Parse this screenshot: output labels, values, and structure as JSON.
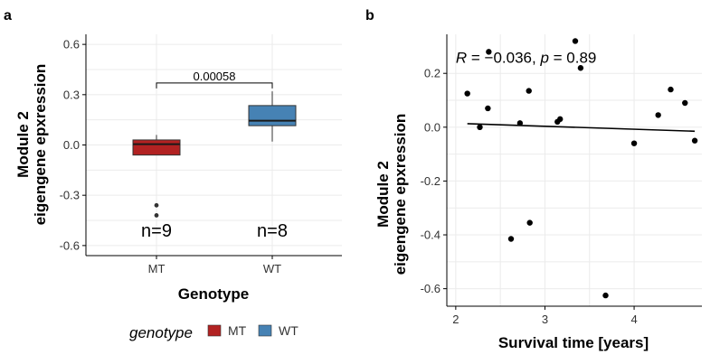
{
  "chart_data": [
    {
      "type": "box",
      "panel_label": "a",
      "xlabel": "Genotype",
      "ylabel": [
        "Module 2",
        "eigengene epxression"
      ],
      "ylim": [
        -0.66,
        0.66
      ],
      "yticks": [
        -0.6,
        -0.3,
        0.0,
        0.3,
        0.6
      ],
      "ytick_labels": [
        "-0.6",
        "-0.3",
        "0.0",
        "0.3",
        "0.6"
      ],
      "categories": [
        "MT",
        "WT"
      ],
      "boxes": [
        {
          "category": "MT",
          "fill": "#b22222",
          "lower_whisker": -0.06,
          "q1": -0.06,
          "median": 0.005,
          "q3": 0.03,
          "upper_whisker": 0.06,
          "outliers": [
            -0.36,
            -0.42
          ],
          "n_label": "n=9"
        },
        {
          "category": "WT",
          "fill": "#4682b4",
          "lower_whisker": 0.02,
          "q1": 0.115,
          "median": 0.145,
          "q3": 0.235,
          "upper_whisker": 0.32,
          "outliers": [],
          "n_label": "n=8"
        }
      ],
      "n_label_y": -0.51,
      "comparison": {
        "label": "0.00058",
        "y": 0.37,
        "between": [
          "MT",
          "WT"
        ]
      },
      "grid": true,
      "legend": {
        "position": "bottom",
        "title": "genotype",
        "entries": [
          {
            "label": "MT",
            "color": "#b22222"
          },
          {
            "label": "WT",
            "color": "#4682b4"
          }
        ]
      }
    },
    {
      "type": "scatter",
      "panel_label": "b",
      "xlabel": "Survival time [years]",
      "ylabel": [
        "Module 2",
        "eigengene epxression"
      ],
      "xlim": [
        1.9,
        4.76
      ],
      "ylim": [
        -0.665,
        0.345
      ],
      "xticks": [
        2,
        3,
        4
      ],
      "xtick_labels": [
        "2",
        "3",
        "4"
      ],
      "yticks": [
        -0.6,
        -0.4,
        -0.2,
        0.0,
        0.2
      ],
      "ytick_labels": [
        "-0.6",
        "-0.4",
        "-0.2",
        "0.0",
        "0.2"
      ],
      "points": [
        {
          "x": 2.13,
          "y": 0.125
        },
        {
          "x": 2.27,
          "y": 0.0
        },
        {
          "x": 2.36,
          "y": 0.07
        },
        {
          "x": 2.37,
          "y": 0.28
        },
        {
          "x": 2.62,
          "y": -0.415
        },
        {
          "x": 2.72,
          "y": 0.015
        },
        {
          "x": 2.82,
          "y": 0.135
        },
        {
          "x": 2.83,
          "y": -0.355
        },
        {
          "x": 3.14,
          "y": 0.02
        },
        {
          "x": 3.17,
          "y": 0.03
        },
        {
          "x": 3.34,
          "y": 0.32
        },
        {
          "x": 3.4,
          "y": 0.22
        },
        {
          "x": 3.68,
          "y": -0.625
        },
        {
          "x": 4.0,
          "y": -0.06
        },
        {
          "x": 4.27,
          "y": 0.045
        },
        {
          "x": 4.41,
          "y": 0.14
        },
        {
          "x": 4.57,
          "y": 0.09
        },
        {
          "x": 4.68,
          "y": -0.05
        }
      ],
      "trend_line": {
        "x": [
          2.13,
          4.68
        ],
        "y": [
          0.013,
          -0.015
        ]
      },
      "annotation": {
        "r_symbol": "R",
        "r_value": " = −0.036, ",
        "p_symbol": "p",
        "p_value": " = 0.89",
        "x": 2.0,
        "y": 0.26
      },
      "grid": true
    }
  ]
}
